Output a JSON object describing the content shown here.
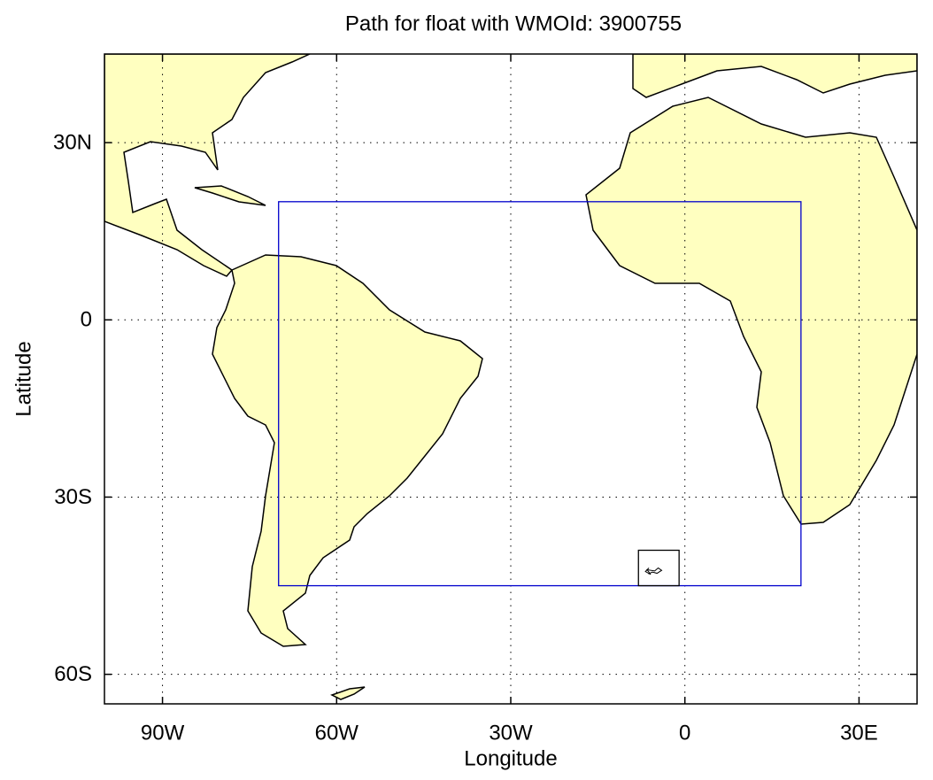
{
  "chart_data": {
    "type": "map",
    "title": "Path for float with WMOId: 3900755",
    "x_label": "Longitude",
    "y_label": "Latitude",
    "xlim": [
      -100,
      40
    ],
    "ylim": [
      -65,
      45
    ],
    "xticks": [
      {
        "value": -90,
        "label": "90W"
      },
      {
        "value": -60,
        "label": "60W"
      },
      {
        "value": -30,
        "label": "30W"
      },
      0,
      {
        "value": 30,
        "label": "30E"
      }
    ],
    "yticks": [
      {
        "value": 30,
        "label": "30N"
      },
      0,
      {
        "value": -30,
        "label": "30S"
      },
      {
        "value": -60,
        "label": "60S"
      }
    ],
    "grid": true,
    "regions": [
      {
        "lon": [
          -70,
          20
        ],
        "lat": [
          -45,
          20
        ],
        "color": "#0000cc"
      },
      {
        "lon": [
          -8,
          -1
        ],
        "lat": [
          -45,
          -39
        ],
        "color": "#000000"
      }
    ],
    "track": {
      "lon": [
        -6.2,
        -6.8,
        -5.9,
        -6.5,
        -5.2,
        -4.6,
        -4.0,
        -4.8,
        -5.6,
        -6.3
      ],
      "lat": [
        -42.0,
        -42.6,
        -43.1,
        -42.3,
        -42.5,
        -42.0,
        -42.4,
        -42.9,
        -42.7,
        -43.0
      ],
      "color": "#000000"
    }
  }
}
